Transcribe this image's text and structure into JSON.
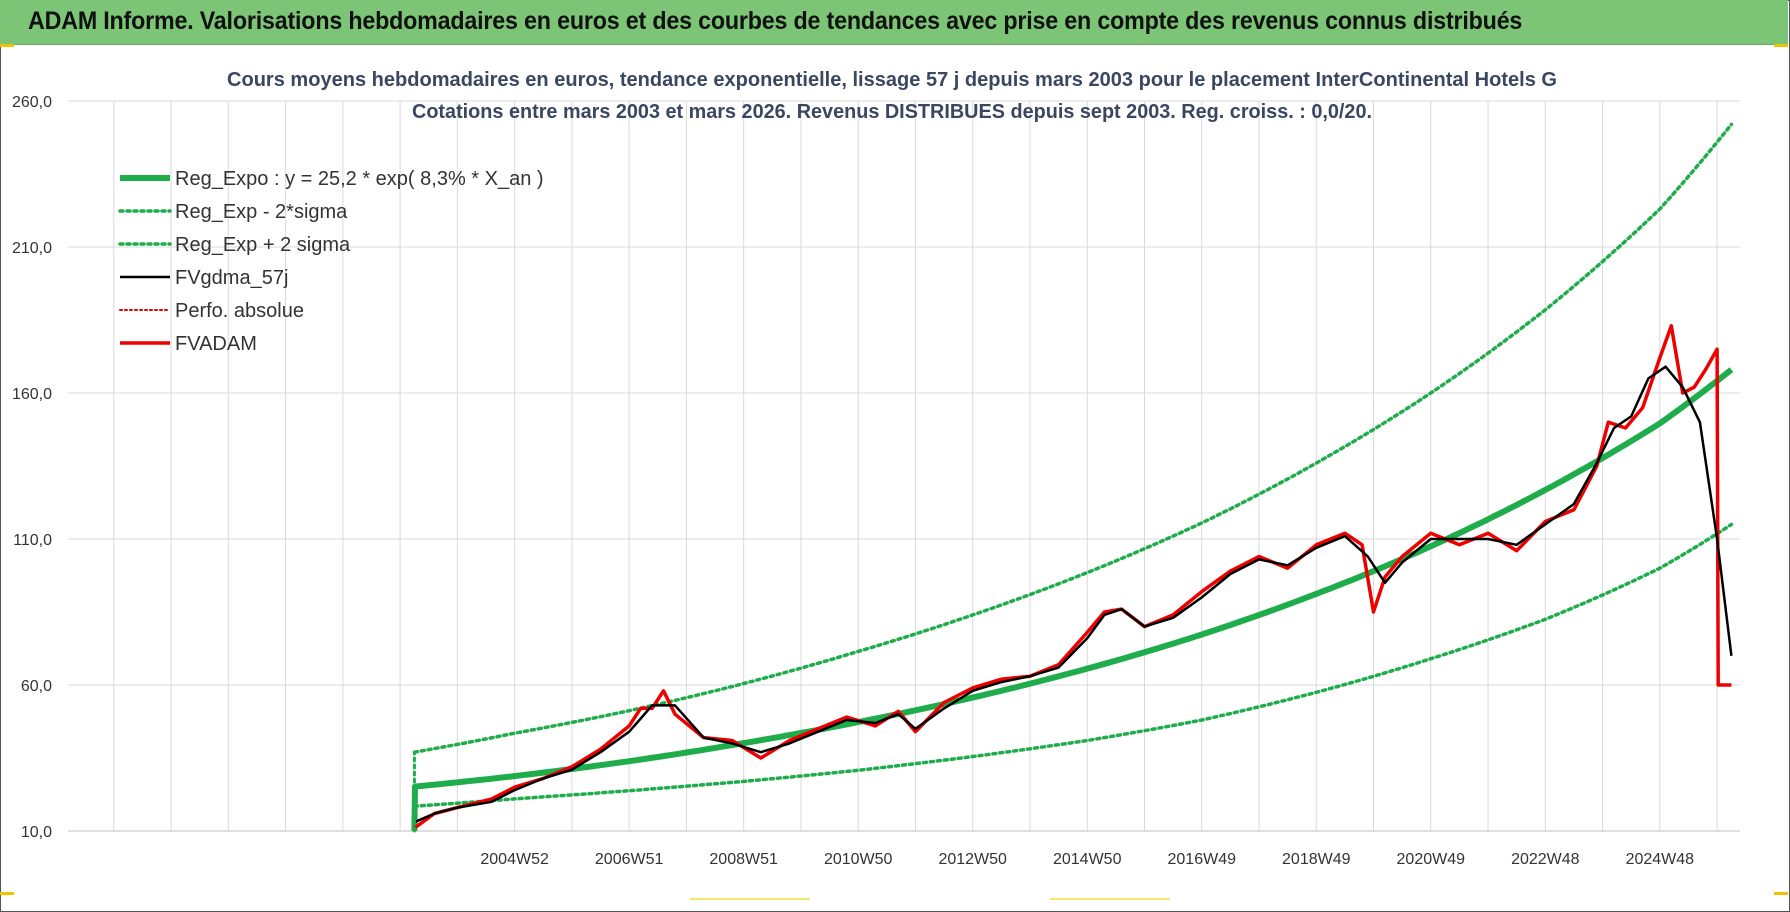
{
  "banner": {
    "title": "ADAM Informe. Valorisations hebdomadaires en euros et des courbes de tendances avec prise en compte des revenus connus distribués"
  },
  "colors": {
    "banner_bg": "#7cc576",
    "reg_expo": "#1fad4c",
    "sigma": "#1fad4c",
    "fvgdma": "#000000",
    "perfo": "#e00000",
    "fvadam": "#ee0000",
    "grid": "#d9d9d9"
  },
  "chart_data": {
    "type": "line",
    "title": "Cours moyens hebdomadaires en euros, tendance exponentielle, lissage 57 j depuis mars 2003 pour le placement InterContinental Hotels G",
    "subtitle": "Cotations entre mars 2003 et mars 2026. Revenus DISTRIBUES depuis sept 2003. Reg. croiss. : 0,0/20.",
    "xlabel": "",
    "ylabel": "",
    "ylim": [
      10,
      260
    ],
    "xlim": [
      1997.2,
      2026.4
    ],
    "y_ticks": [
      "10,0",
      "60,0",
      "110,0",
      "160,0",
      "210,0",
      "260,0"
    ],
    "y_tick_values": [
      10,
      60,
      110,
      160,
      210,
      260
    ],
    "x_tick_labels": [
      "2004W52",
      "2006W51",
      "2008W51",
      "2010W50",
      "2012W50",
      "2014W50",
      "2016W49",
      "2018W49",
      "2020W49",
      "2022W48",
      "2024W48"
    ],
    "x_tick_values": [
      2005.0,
      2007.0,
      2009.0,
      2011.0,
      2013.0,
      2015.0,
      2017.0,
      2019.0,
      2021.0,
      2023.0,
      2025.0
    ],
    "grid": true,
    "legend_position": "top-left",
    "series": [
      {
        "name": "Reg_Expo : y = 25,2 * exp( 8,3% *  X_an )",
        "key": "reg_expo",
        "style": "solid-thick",
        "x": [
          2003.25,
          2003.26,
          2005,
          2007,
          2009,
          2011,
          2013,
          2015,
          2017,
          2019,
          2021,
          2023,
          2025,
          2026.25
        ],
        "values": [
          10,
          25.2,
          28.8,
          33.9,
          40.1,
          47.3,
          55.7,
          65.6,
          77.3,
          91.2,
          107.5,
          126.8,
          149.6,
          168.0
        ]
      },
      {
        "name": "Reg_Exp - 2*sigma",
        "key": "sigma_low",
        "style": "dotted",
        "x": [
          2003.25,
          2005,
          2007,
          2009,
          2011,
          2013,
          2015,
          2017,
          2019,
          2021,
          2023,
          2025,
          2026.25
        ],
        "values": [
          18.5,
          21.0,
          23.8,
          27.0,
          30.8,
          35.5,
          41.0,
          48.0,
          57.5,
          69.0,
          82.5,
          100.0,
          115.0
        ]
      },
      {
        "name": "Reg_Exp + 2 sigma",
        "key": "sigma_high",
        "style": "dotted",
        "x": [
          2003.25,
          2005,
          2007,
          2009,
          2011,
          2013,
          2015,
          2017,
          2019,
          2021,
          2023,
          2025,
          2026.25
        ],
        "values": [
          37.0,
          43.5,
          51.2,
          60.5,
          71.5,
          84.0,
          98.5,
          115.5,
          136.0,
          160.0,
          188.5,
          223.0,
          252.0
        ]
      },
      {
        "name": "FVgdma_57j",
        "key": "fvgdma",
        "style": "solid",
        "x": [
          2003.25,
          2003.6,
          2004.0,
          2004.6,
          2005.0,
          2005.5,
          2006.0,
          2006.5,
          2007.0,
          2007.4,
          2007.8,
          2008.3,
          2008.8,
          2009.3,
          2009.8,
          2010.3,
          2010.8,
          2011.3,
          2011.7,
          2012.0,
          2012.5,
          2013.0,
          2013.5,
          2014.0,
          2014.5,
          2015.0,
          2015.3,
          2015.6,
          2016.0,
          2016.5,
          2017.0,
          2017.5,
          2018.0,
          2018.5,
          2019.0,
          2019.5,
          2019.9,
          2020.2,
          2020.5,
          2021.0,
          2021.5,
          2022.0,
          2022.5,
          2023.0,
          2023.5,
          2023.9,
          2024.2,
          2024.5,
          2024.8,
          2025.1,
          2025.4,
          2025.7,
          2026.0,
          2026.25
        ],
        "values": [
          13,
          16,
          18,
          20,
          24,
          28,
          31,
          37,
          44,
          53,
          53,
          42,
          40,
          37,
          40,
          44,
          48,
          47,
          50,
          45,
          52,
          58,
          61,
          63,
          66,
          76,
          84,
          86,
          80,
          83,
          90,
          98,
          103,
          101,
          107,
          111,
          104,
          95,
          102,
          110,
          110,
          110,
          108,
          115,
          122,
          136,
          148,
          152,
          165,
          169,
          162,
          150,
          110,
          70
        ]
      },
      {
        "name": "Perfo. absolue",
        "key": "perfo",
        "style": "dotted",
        "x": [],
        "values": []
      },
      {
        "name": "FVADAM",
        "key": "fvadam",
        "style": "solid-thick",
        "x": [
          2003.25,
          2003.6,
          2004.0,
          2004.6,
          2005.0,
          2005.5,
          2006.0,
          2006.5,
          2007.0,
          2007.2,
          2007.4,
          2007.6,
          2007.8,
          2008.3,
          2008.8,
          2009.3,
          2009.8,
          2010.3,
          2010.8,
          2011.3,
          2011.7,
          2012.0,
          2012.5,
          2013.0,
          2013.5,
          2014.0,
          2014.5,
          2015.0,
          2015.3,
          2015.6,
          2016.0,
          2016.5,
          2017.0,
          2017.5,
          2018.0,
          2018.5,
          2019.0,
          2019.5,
          2019.8,
          2020.0,
          2020.2,
          2020.5,
          2021.0,
          2021.5,
          2022.0,
          2022.5,
          2023.0,
          2023.5,
          2023.9,
          2024.1,
          2024.4,
          2024.7,
          2025.0,
          2025.2,
          2025.4,
          2025.6,
          2025.8,
          2026.0,
          2026.02,
          2026.25
        ],
        "values": [
          11,
          16,
          18,
          21,
          25,
          28,
          32,
          38,
          46,
          52,
          52,
          58,
          50,
          42,
          41,
          35,
          41,
          45,
          49,
          46,
          51,
          44,
          54,
          59,
          62,
          63,
          67,
          78,
          85,
          86,
          80,
          84,
          92,
          99,
          104,
          100,
          108,
          112,
          108,
          85,
          97,
          104,
          112,
          108,
          112,
          106,
          116,
          120,
          135,
          150,
          148,
          155,
          172,
          183,
          160,
          162,
          168,
          175,
          60,
          60
        ]
      }
    ]
  }
}
